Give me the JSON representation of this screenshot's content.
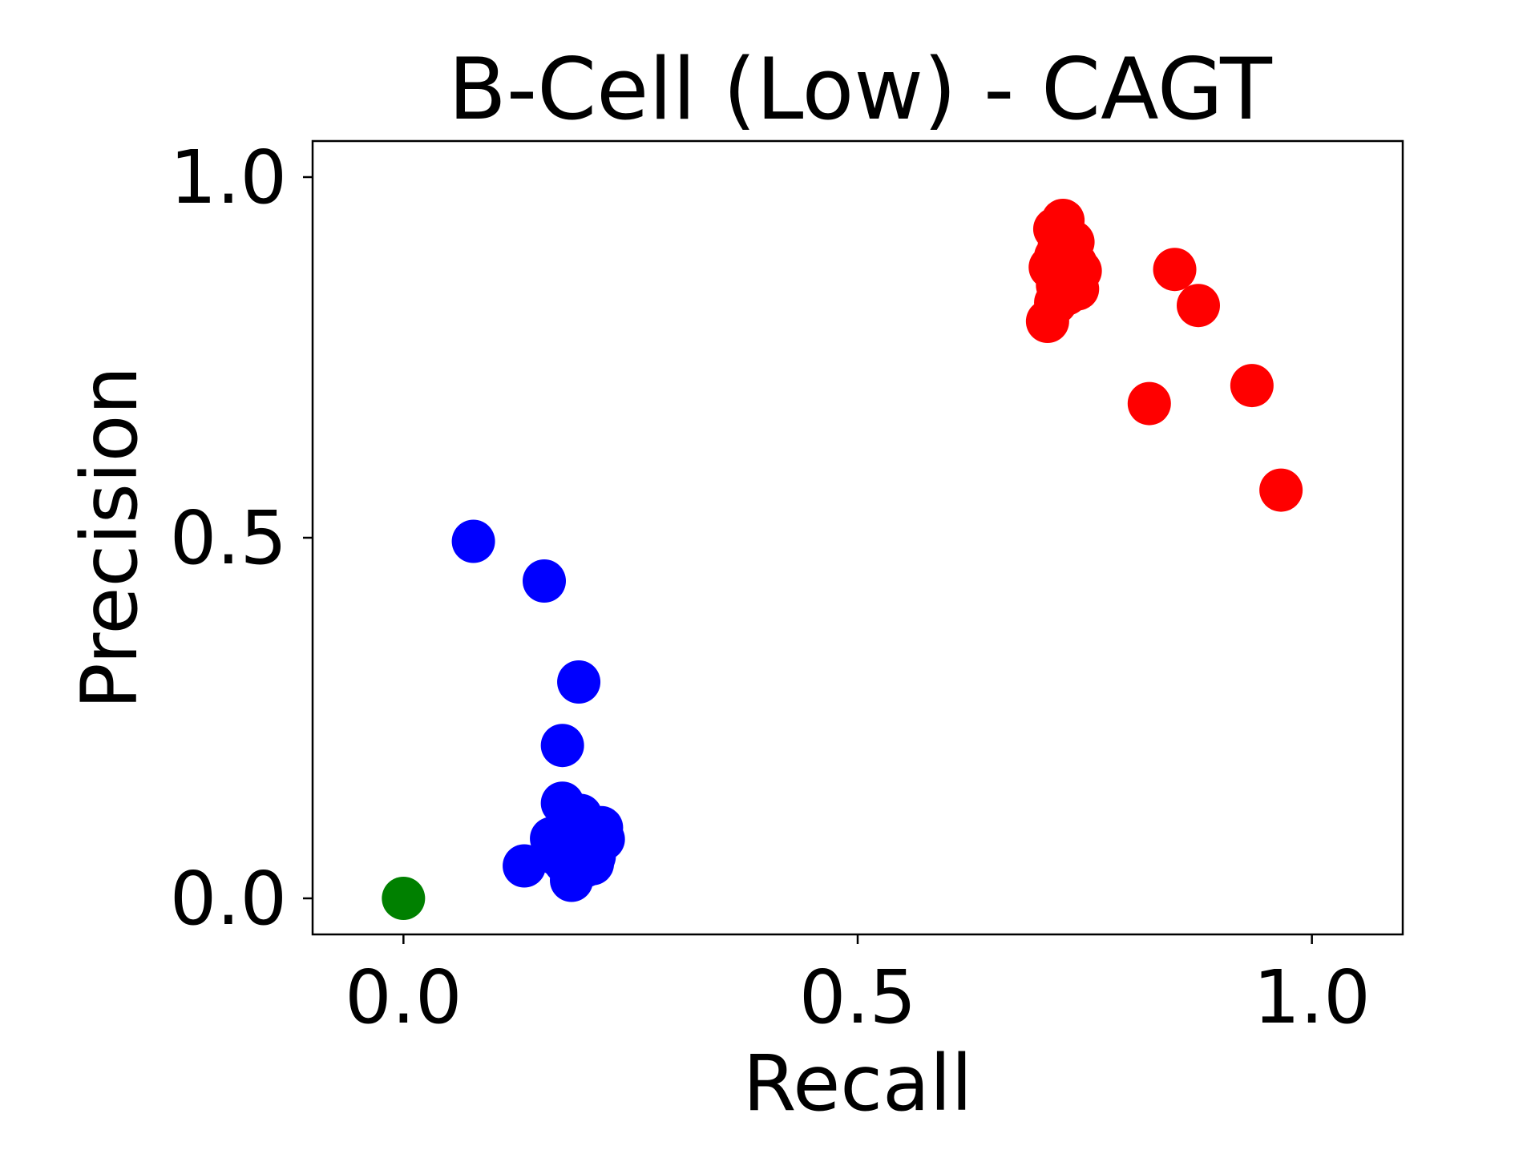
{
  "chart_data": {
    "type": "scatter",
    "title": "B-Cell (Low) - CAGT",
    "xlabel": "Recall",
    "ylabel": "Precision",
    "xlim": [
      -0.1,
      1.1
    ],
    "ylim": [
      -0.05,
      1.05
    ],
    "xticks": [
      0.0,
      0.5,
      1.0
    ],
    "yticks": [
      0.0,
      0.5,
      1.0
    ],
    "xtick_labels": [
      "0.0",
      "0.5",
      "1.0"
    ],
    "ytick_labels": [
      "0.0",
      "0.5",
      "1.0"
    ],
    "grid": false,
    "legend": "none",
    "series": [
      {
        "color": "#0000ff",
        "points": [
          [
            0.077,
            0.495
          ],
          [
            0.155,
            0.44
          ],
          [
            0.193,
            0.3
          ],
          [
            0.175,
            0.212
          ],
          [
            0.175,
            0.132
          ],
          [
            0.195,
            0.115
          ],
          [
            0.218,
            0.098
          ],
          [
            0.22,
            0.082
          ],
          [
            0.163,
            0.083
          ],
          [
            0.185,
            0.08
          ],
          [
            0.205,
            0.085
          ],
          [
            0.17,
            0.06
          ],
          [
            0.19,
            0.062
          ],
          [
            0.21,
            0.058
          ],
          [
            0.178,
            0.05
          ],
          [
            0.2,
            0.045
          ],
          [
            0.208,
            0.048
          ],
          [
            0.133,
            0.045
          ],
          [
            0.185,
            0.025
          ]
        ]
      },
      {
        "color": "#ff0000",
        "points": [
          [
            0.726,
            0.94
          ],
          [
            0.717,
            0.928
          ],
          [
            0.727,
            0.915
          ],
          [
            0.737,
            0.91
          ],
          [
            0.722,
            0.905
          ],
          [
            0.732,
            0.896
          ],
          [
            0.718,
            0.89
          ],
          [
            0.74,
            0.88
          ],
          [
            0.712,
            0.875
          ],
          [
            0.728,
            0.872
          ],
          [
            0.745,
            0.87
          ],
          [
            0.735,
            0.858
          ],
          [
            0.72,
            0.85
          ],
          [
            0.742,
            0.845
          ],
          [
            0.73,
            0.838
          ],
          [
            0.718,
            0.826
          ],
          [
            0.709,
            0.8
          ],
          [
            0.849,
            0.872
          ],
          [
            0.875,
            0.822
          ],
          [
            0.821,
            0.686
          ],
          [
            0.934,
            0.711
          ],
          [
            0.966,
            0.566
          ]
        ]
      },
      {
        "color": "#008000",
        "points": [
          [
            0.0,
            0.0
          ]
        ]
      }
    ]
  }
}
